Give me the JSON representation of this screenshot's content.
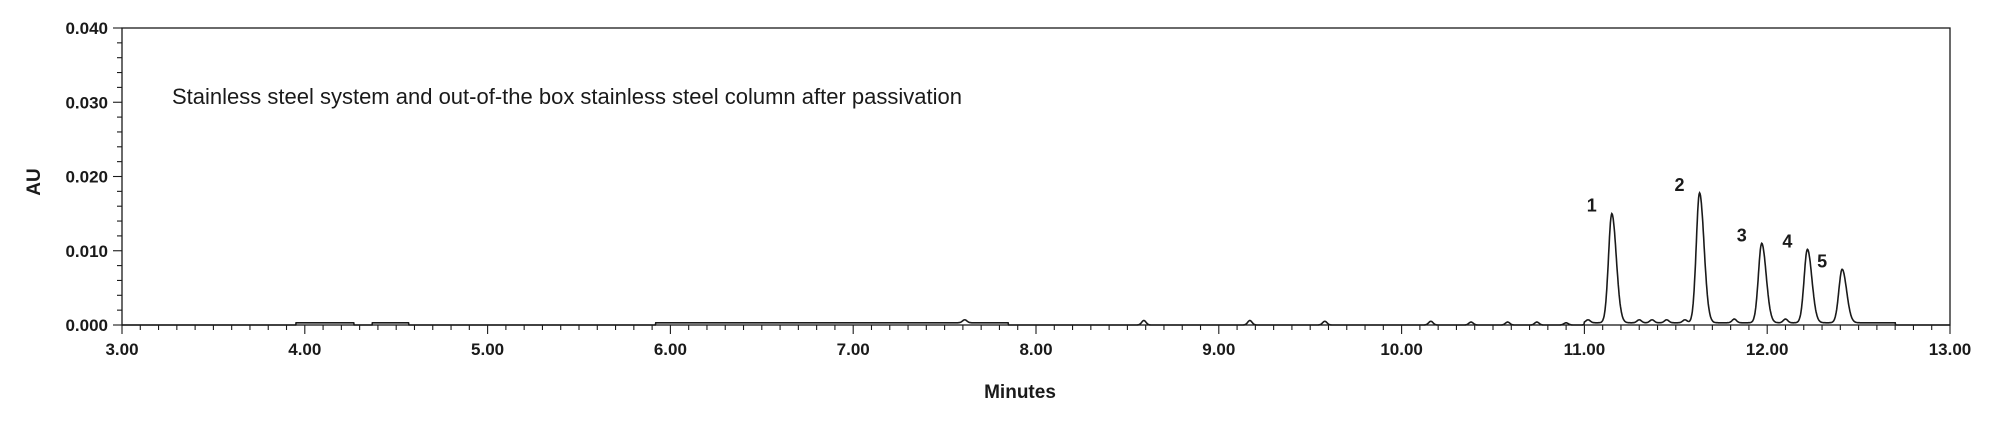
{
  "chart_data": {
    "type": "line",
    "title": "",
    "xlabel": "Minutes",
    "ylabel": "AU",
    "xlim": [
      3.0,
      13.0
    ],
    "ylim": [
      0.0,
      0.04
    ],
    "x_ticks": [
      "3.00",
      "4.00",
      "5.00",
      "6.00",
      "7.00",
      "8.00",
      "9.00",
      "10.00",
      "11.00",
      "12.00",
      "13.00"
    ],
    "y_ticks": [
      "0.000",
      "0.010",
      "0.020",
      "0.030",
      "0.040"
    ],
    "grid": false,
    "annotation": "Stainless steel system and out-of-the box stainless steel column after passivation",
    "line_color": "#1a1a1a",
    "baseline": 0.0,
    "peaks": [
      {
        "label": "1",
        "x": 11.15,
        "y": 0.015
      },
      {
        "label": "2",
        "x": 11.63,
        "y": 0.0178
      },
      {
        "label": "3",
        "x": 11.97,
        "y": 0.011
      },
      {
        "label": "4",
        "x": 12.22,
        "y": 0.0102
      },
      {
        "label": "5",
        "x": 12.41,
        "y": 0.0075
      }
    ],
    "minor_peaks": [
      {
        "x": 7.61,
        "y": 0.0004
      },
      {
        "x": 8.59,
        "y": 0.0006
      },
      {
        "x": 9.17,
        "y": 0.0006
      },
      {
        "x": 9.58,
        "y": 0.0005
      },
      {
        "x": 10.16,
        "y": 0.0005
      },
      {
        "x": 10.38,
        "y": 0.0004
      },
      {
        "x": 10.58,
        "y": 0.0004
      },
      {
        "x": 10.74,
        "y": 0.0004
      },
      {
        "x": 10.9,
        "y": 0.0003
      },
      {
        "x": 11.02,
        "y": 0.0004
      },
      {
        "x": 11.3,
        "y": 0.0004
      },
      {
        "x": 11.37,
        "y": 0.0004
      },
      {
        "x": 11.45,
        "y": 0.0004
      },
      {
        "x": 11.55,
        "y": 0.0004
      },
      {
        "x": 11.82,
        "y": 0.0005
      },
      {
        "x": 12.1,
        "y": 0.0005
      }
    ],
    "plateaus": [
      {
        "x0": 3.95,
        "x1": 4.27,
        "y": 0.0003
      },
      {
        "x0": 4.37,
        "x1": 4.57,
        "y": 0.0003
      },
      {
        "x0": 5.92,
        "x1": 7.85,
        "y": 0.0003
      },
      {
        "x0": 11.0,
        "x1": 12.7,
        "y": 0.0003
      }
    ]
  }
}
